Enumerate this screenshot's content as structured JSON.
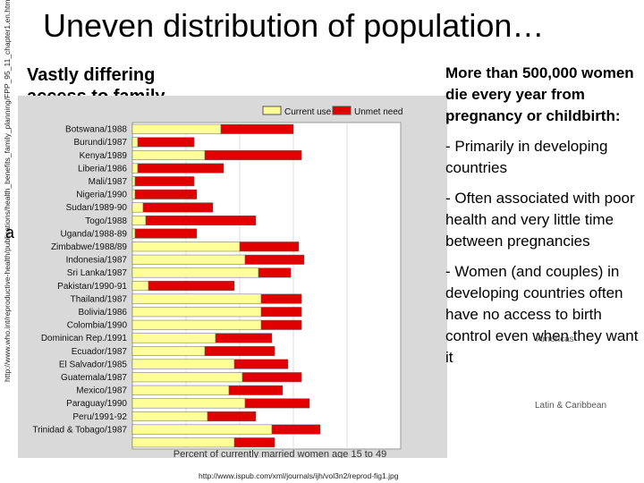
{
  "side_url": "http://www.who.int/reproductive-health/publications/health_benefits_family_planning/FPP_95_11_chapter1.en.html",
  "title": "Uneven distribution of population…",
  "left_text": {
    "line1": "Vastly differing",
    "line2": "access to family"
  },
  "stray_glyph": "a",
  "right": {
    "lead": "More than 500,000 women die every year from pregnancy or childbirth:",
    "bullet1": "- Primarily in developing countries",
    "bullet2": "- Often associated with poor health and very little time between pregnancies",
    "bullet3": "- Women (and couples) in developing countries often have no access to birth control even when they want it"
  },
  "overlays": {
    "a": "Americas",
    "b": "Latin & Caribbean"
  },
  "bottom_url": "http://www.ispub.com/xml/journals/ijh/vol3n2/reprod-fig1.jpg",
  "colors": {
    "current_use": "#ffff99",
    "unmet_need": "#e00000",
    "plot_bg": "#ffffff",
    "frame_bg": "#d9d9d9"
  },
  "chart_data": {
    "type": "bar",
    "stacked": true,
    "orientation": "horizontal",
    "xlabel": "Percent of currently married women age 15 to 49",
    "legend_position": "top",
    "series": [
      {
        "name": "Current use",
        "values": [
          33,
          2,
          27,
          2,
          1,
          1,
          4,
          5,
          1,
          40,
          42,
          47,
          6,
          48,
          48,
          48,
          31,
          27,
          38,
          41,
          36,
          42,
          28,
          52,
          38
        ]
      },
      {
        "name": "Unmet need",
        "values": [
          27,
          21,
          36,
          32,
          22,
          23,
          26,
          41,
          23,
          22,
          22,
          12,
          32,
          15,
          15,
          15,
          21,
          26,
          20,
          22,
          20,
          24,
          18,
          18,
          15
        ]
      }
    ],
    "categories": [
      "Botswana/1988",
      "Burundi/1987",
      "Kenya/1989",
      "Liberia/1986",
      "Mali/1987",
      "Nigeria/1990",
      "Sudan/1989-90",
      "Togo/1988",
      "Uganda/1988-89",
      "Zimbabwe/1988/89",
      "Indonesia/1987",
      "Sri Lanka/1987",
      "Pakistan/1990-91",
      "Thailand/1987",
      "Bolivia/1986",
      "Colombia/1990",
      "Dominican Rep./1991",
      "Ecuador/1987",
      "El Salvador/1985",
      "Guatemala/1987",
      "Mexico/1987",
      "Paraguay/1990",
      "Peru/1991-92",
      "Trinidad & Tobago/1987",
      ""
    ]
  }
}
